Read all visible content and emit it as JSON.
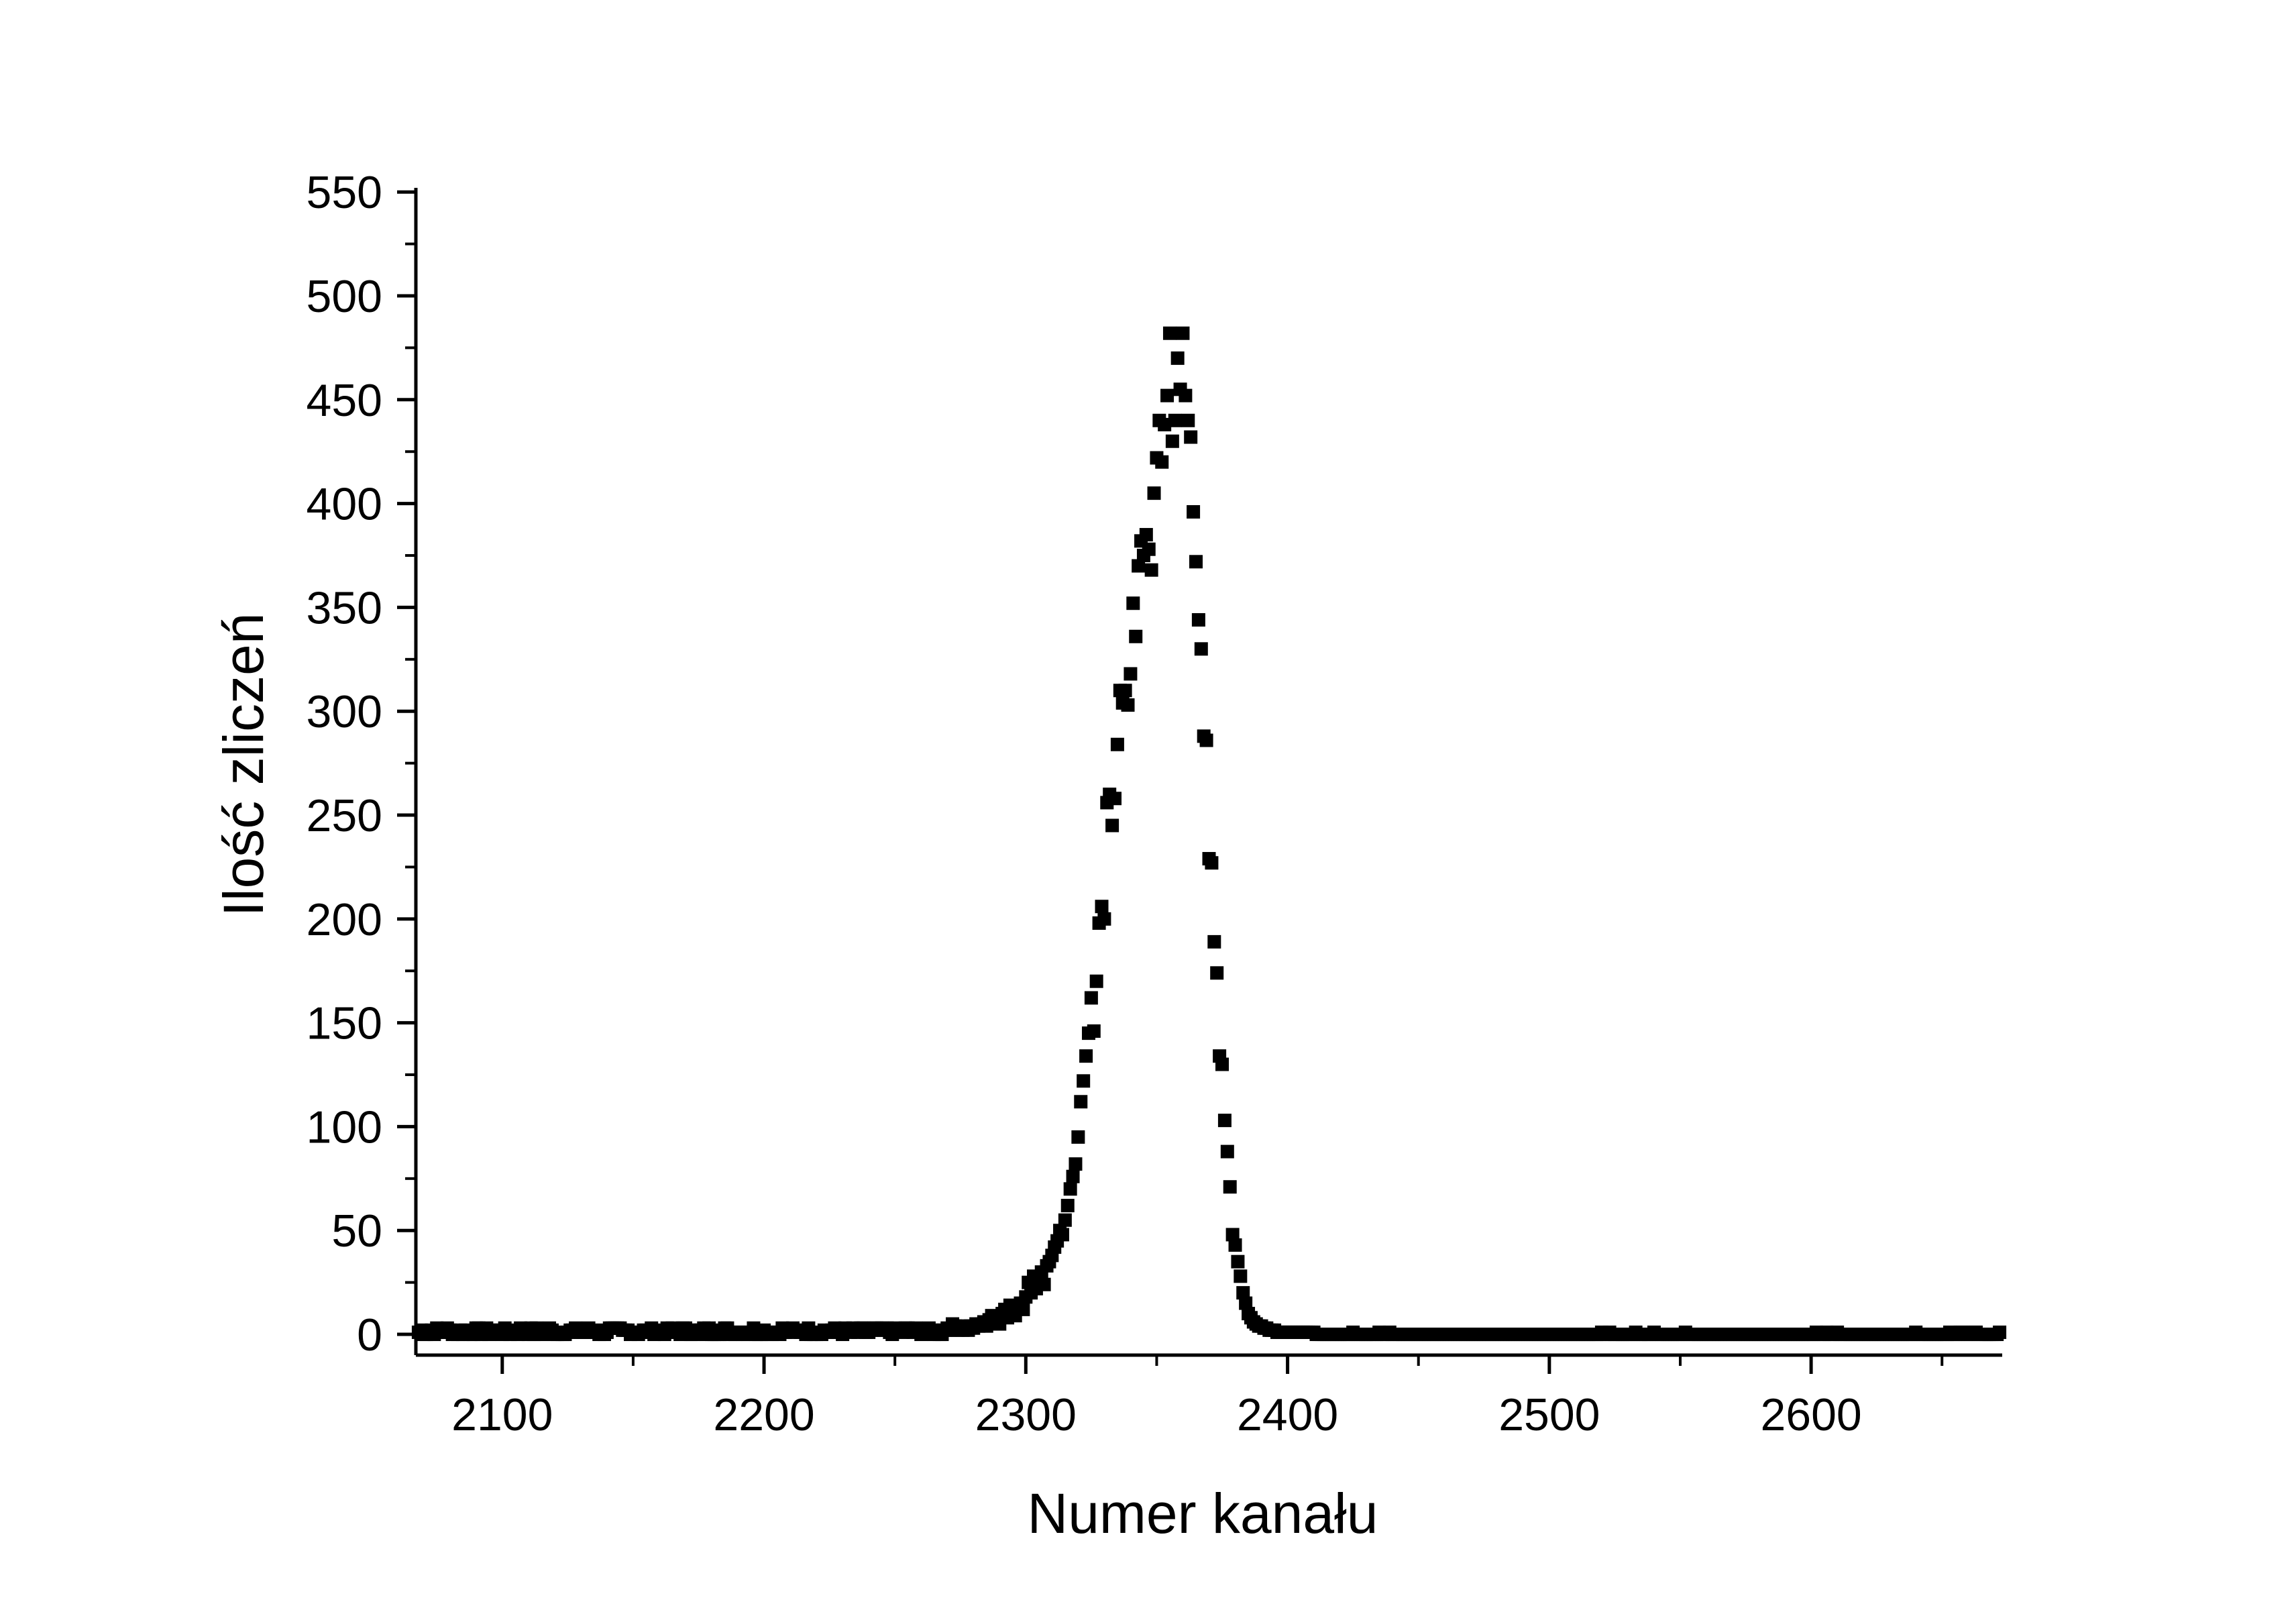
{
  "chart_data": {
    "type": "scatter",
    "title": "",
    "xlabel": "Numer kanału",
    "ylabel": "Ilość zliczeń",
    "xlim": [
      2067,
      2673
    ],
    "ylim": [
      -10,
      552
    ],
    "x_ticks": [
      2100,
      2200,
      2300,
      2400,
      2500,
      2600
    ],
    "x_tick_labels": [
      "2100",
      "2200",
      "2300",
      "2400",
      "2500",
      "2600"
    ],
    "y_ticks": [
      0,
      50,
      100,
      150,
      200,
      250,
      300,
      350,
      400,
      450,
      500,
      550
    ],
    "y_tick_labels": [
      "0",
      "50",
      "100",
      "150",
      "200",
      "250",
      "300",
      "350",
      "400",
      "450",
      "500",
      "550"
    ],
    "grid": false,
    "legend": "none",
    "marker": "square",
    "marker_color": "#000000",
    "series": [
      {
        "x": [
          2283,
          2284,
          2285,
          2286,
          2287,
          2288,
          2289,
          2290,
          2291,
          2292,
          2293,
          2294,
          2295,
          2296,
          2297,
          2298,
          2299,
          2300,
          2301,
          2302,
          2303,
          2304,
          2305,
          2306,
          2307,
          2308,
          2309,
          2310,
          2311,
          2312,
          2313,
          2314,
          2315,
          2316,
          2317,
          2318,
          2319,
          2320,
          2321,
          2322,
          2323,
          2324,
          2325,
          2326,
          2327,
          2328,
          2329,
          2330,
          2331,
          2332,
          2333,
          2334,
          2335,
          2336,
          2337,
          2338,
          2339,
          2340,
          2341,
          2342,
          2343,
          2344,
          2345,
          2346,
          2347,
          2348,
          2349,
          2350,
          2351,
          2352,
          2353,
          2354,
          2355,
          2356,
          2357,
          2358,
          2359,
          2360,
          2361,
          2362,
          2363,
          2364,
          2365,
          2366,
          2367,
          2368,
          2369,
          2370,
          2371,
          2372,
          2373,
          2374,
          2375,
          2376,
          2377,
          2378,
          2379,
          2380,
          2381,
          2382,
          2383,
          2384,
          2385,
          2386,
          2387,
          2388,
          2389,
          2390,
          2391,
          2392,
          2393,
          2394,
          2395,
          2396,
          2397,
          2398,
          2399,
          2400,
          2401,
          2402,
          2403,
          2404,
          2405,
          2406,
          2407,
          2408,
          2409,
          2410
        ],
        "y": [
          5,
          6,
          4,
          7,
          9,
          6,
          8,
          5,
          10,
          12,
          8,
          14,
          11,
          9,
          13,
          15,
          12,
          18,
          25,
          20,
          28,
          22,
          26,
          30,
          24,
          33,
          35,
          38,
          42,
          45,
          50,
          48,
          55,
          62,
          70,
          76,
          82,
          95,
          112,
          122,
          134,
          145,
          162,
          146,
          170,
          198,
          206,
          200,
          256,
          260,
          245,
          258,
          284,
          310,
          304,
          310,
          303,
          318,
          352,
          336,
          370,
          382,
          375,
          385,
          378,
          368,
          405,
          422,
          440,
          420,
          438,
          452,
          482,
          430,
          440,
          470,
          455,
          482,
          452,
          440,
          432,
          396,
          372,
          344,
          330,
          288,
          286,
          229,
          227,
          189,
          174,
          134,
          130,
          103,
          88,
          71,
          48,
          43,
          35,
          28,
          20,
          15,
          10,
          8,
          6,
          5,
          4,
          4,
          3,
          3,
          2,
          2,
          2,
          1,
          1,
          1,
          1,
          1,
          1,
          1,
          1,
          1,
          1,
          1,
          1,
          1,
          1,
          1
        ]
      }
    ]
  }
}
